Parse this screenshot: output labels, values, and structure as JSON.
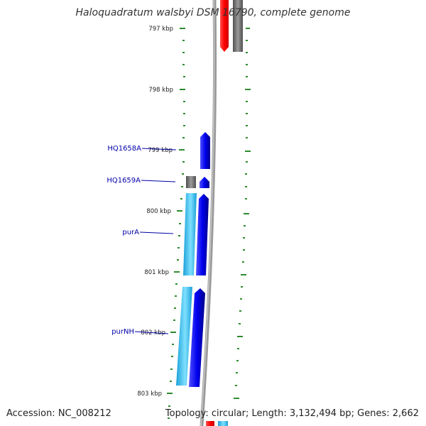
{
  "title": "Haloquadratum walsbyi DSM 16790, complete genome",
  "footer": {
    "accession": "Accession: NC_008212",
    "summary": "Topology: circular; Length: 3,132,494 bp; Genes: 2,662"
  },
  "ticks": [
    {
      "label": "797 kbp"
    },
    {
      "label": "798 kbp"
    },
    {
      "label": "799 kbp"
    },
    {
      "label": "800 kbp"
    },
    {
      "label": "801 kbp"
    },
    {
      "label": "802 kbp"
    },
    {
      "label": "803 kbp"
    }
  ],
  "genes": [
    {
      "label": "HQ1658A"
    },
    {
      "label": "HQ1659A"
    },
    {
      "label": "purA"
    },
    {
      "label": "purNH"
    }
  ],
  "colors": {
    "backbone": "#808080",
    "gene_forward": "#0000ee",
    "gene_cds": "#22bbee",
    "gene_other": "#707070",
    "highlight": "#ff0000",
    "tick": "#2e8b2e",
    "label": "#0000aa"
  }
}
